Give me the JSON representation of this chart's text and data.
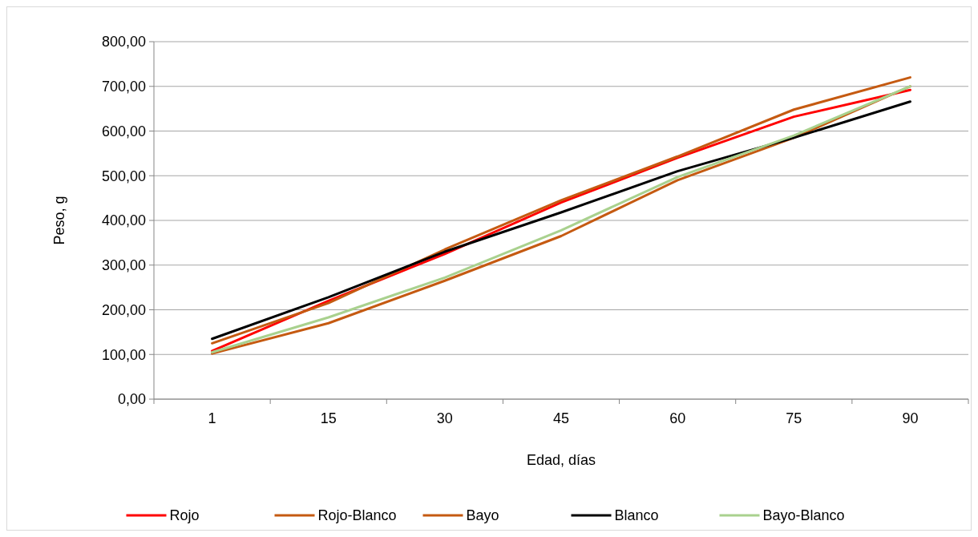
{
  "chart_data": {
    "type": "line",
    "xlabel": "Edad, días",
    "ylabel": "Peso, g",
    "categories": [
      "1",
      "15",
      "30",
      "45",
      "60",
      "75",
      "90"
    ],
    "series": [
      {
        "name": "Rojo",
        "color": "#ff0000",
        "values": [
          108,
          220,
          325,
          440,
          540,
          632,
          692
        ]
      },
      {
        "name": "Rojo-Blanco",
        "color": "#c55a11",
        "values": [
          102,
          170,
          265,
          365,
          490,
          585,
          700
        ]
      },
      {
        "name": "Bayo",
        "color": "#c55a11",
        "values": [
          125,
          215,
          335,
          445,
          543,
          648,
          720
        ]
      },
      {
        "name": "Blanco",
        "color": "#000000",
        "values": [
          135,
          228,
          330,
          418,
          510,
          585,
          666
        ]
      },
      {
        "name": "Bayo-Blanco",
        "color": "#a9d18e",
        "values": [
          105,
          183,
          272,
          378,
          497,
          590,
          700
        ]
      }
    ],
    "ylim": [
      0,
      800
    ],
    "yticks": [
      {
        "value": 0,
        "label": "0,00"
      },
      {
        "value": 100,
        "label": "100,00"
      },
      {
        "value": 200,
        "label": "200,00"
      },
      {
        "value": 300,
        "label": "300,00"
      },
      {
        "value": 400,
        "label": "400,00"
      },
      {
        "value": 500,
        "label": "500,00"
      },
      {
        "value": 600,
        "label": "600,00"
      },
      {
        "value": 700,
        "label": "700,00"
      },
      {
        "value": 800,
        "label": "800,00"
      }
    ],
    "grid": "y",
    "legend": "bottom",
    "marker": "none",
    "line_style": "solid"
  }
}
